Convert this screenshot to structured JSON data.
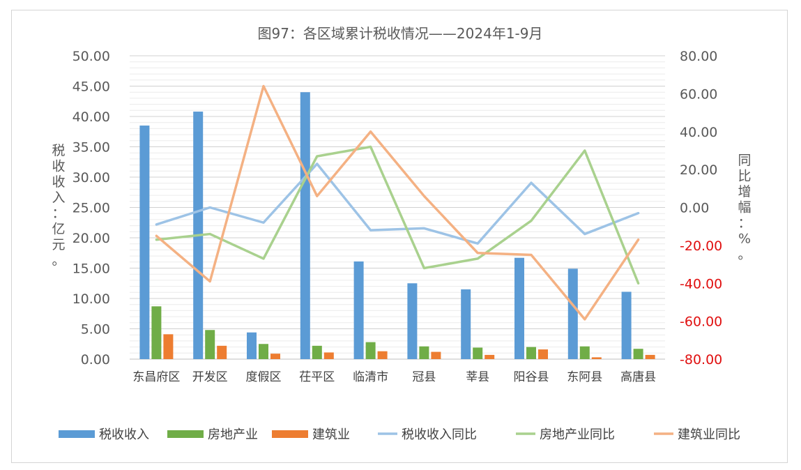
{
  "chart_data": {
    "type": "bar",
    "title": "图97：各区域累计税收情况——2024年1-9月",
    "ylabel_left": "税收收入：亿元。",
    "ylabel_right": "同比增幅：%。",
    "categories": [
      "东昌府区",
      "开发区",
      "度假区",
      "茌平区",
      "临清市",
      "冠县",
      "莘县",
      "阳谷县",
      "东阿县",
      "高唐县"
    ],
    "ylim_left": [
      0,
      50
    ],
    "yticks_left": [
      "50.00",
      "45.00",
      "40.00",
      "35.00",
      "30.00",
      "25.00",
      "20.00",
      "15.00",
      "10.00",
      "5.00",
      "0.00"
    ],
    "ylim_right": [
      -80,
      80
    ],
    "yticks_right": [
      "80.00",
      "60.00",
      "40.00",
      "20.00",
      "0.00",
      "-20.00",
      "-40.00",
      "-60.00",
      "-80.00"
    ],
    "bar_series": [
      {
        "name": "税收收入",
        "color": "#5b9bd5",
        "values": [
          38.5,
          40.8,
          4.4,
          44.0,
          16.1,
          12.5,
          11.5,
          16.7,
          14.9,
          11.1
        ]
      },
      {
        "name": "房地产业",
        "color": "#70ad47",
        "values": [
          8.7,
          4.8,
          2.5,
          2.2,
          2.8,
          2.1,
          1.9,
          2.0,
          2.1,
          1.7
        ]
      },
      {
        "name": "建筑业",
        "color": "#ed7d31",
        "values": [
          4.1,
          2.2,
          0.9,
          1.1,
          1.3,
          1.2,
          0.7,
          1.6,
          0.3,
          0.7
        ]
      }
    ],
    "line_series": [
      {
        "name": "税收收入同比",
        "color": "#9dc3e6",
        "values": [
          -9,
          0,
          -8,
          23,
          -12,
          -11,
          -19,
          13,
          -14,
          -3
        ]
      },
      {
        "name": "房地产业同比",
        "color": "#a9d18e",
        "values": [
          -17,
          -14,
          -27,
          27,
          32,
          -32,
          -27,
          -7,
          30,
          -40
        ]
      },
      {
        "name": "建筑业同比",
        "color": "#f4b183",
        "values": [
          -15,
          -39,
          64,
          6,
          40,
          6,
          -24,
          -25,
          -59,
          -17
        ]
      }
    ],
    "grid": true,
    "legend_position": "bottom"
  }
}
